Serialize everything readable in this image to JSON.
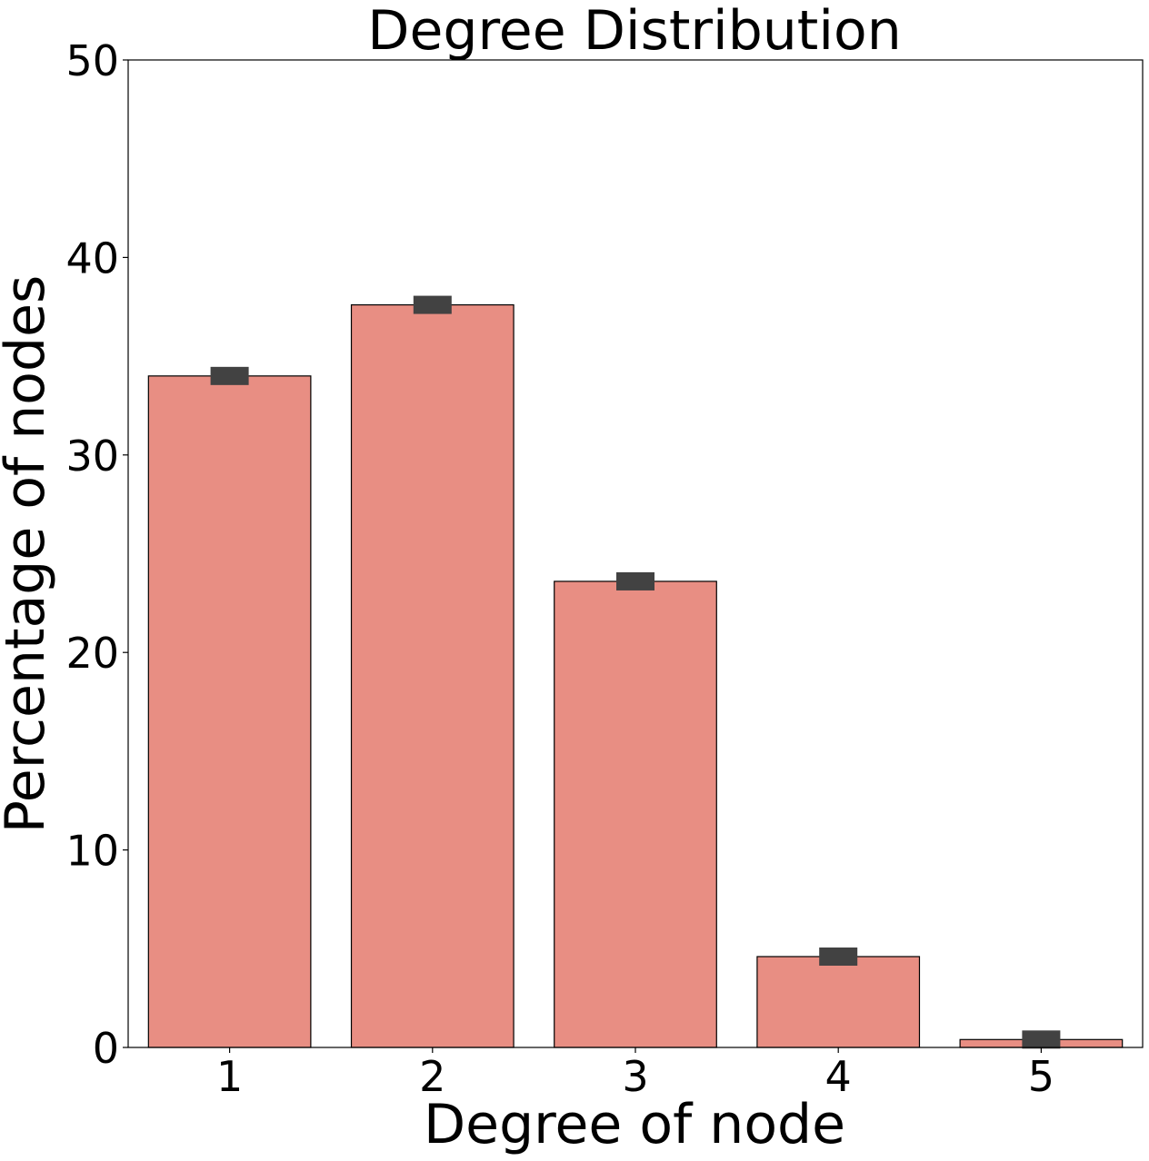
{
  "chart_data": {
    "type": "bar",
    "title": "Degree Distribution",
    "xlabel": "Degree of node",
    "ylabel": "Percentage of nodes",
    "categories": [
      "1",
      "2",
      "3",
      "4",
      "5"
    ],
    "values": [
      34.0,
      37.6,
      23.6,
      4.6,
      0.4
    ],
    "errors": [
      0.4,
      0.4,
      0.4,
      0.4,
      0.4
    ],
    "ylim": [
      0,
      50
    ],
    "yticks": [
      0,
      10,
      20,
      30,
      40,
      50
    ],
    "grid": false,
    "colors": {
      "bar_fill": "#e88e83",
      "bar_edge": "#000000",
      "error_bar": "#424242"
    }
  }
}
